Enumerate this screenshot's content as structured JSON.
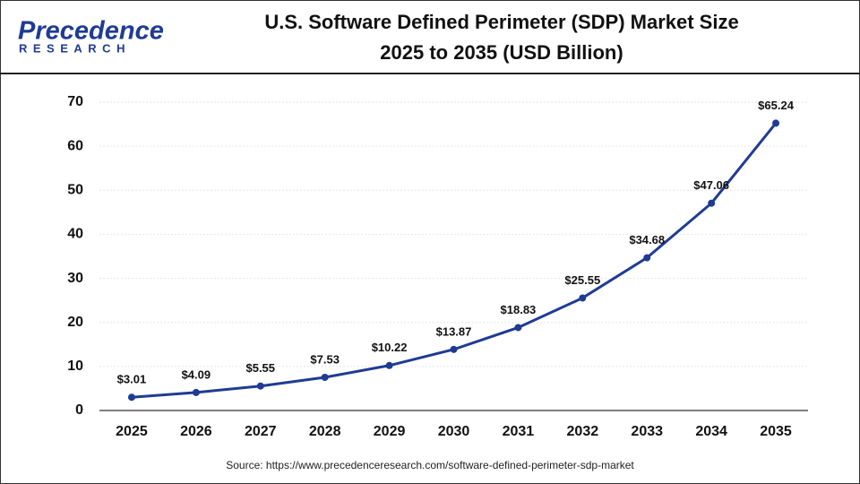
{
  "brand": {
    "name": "Precedence",
    "tagline": "RESEARCH"
  },
  "chart_data": {
    "type": "line",
    "title": [
      "U.S. Software Defined Perimeter (SDP) Market Size",
      "2025 to 2035 (USD Billion)"
    ],
    "categories": [
      "2025",
      "2026",
      "2027",
      "2028",
      "2029",
      "2030",
      "2031",
      "2032",
      "2033",
      "2034",
      "2035"
    ],
    "values": [
      3.01,
      4.09,
      5.55,
      7.53,
      10.22,
      13.87,
      18.83,
      25.55,
      34.68,
      47.06,
      65.24
    ],
    "value_labels": [
      "$3.01",
      "$4.09",
      "$5.55",
      "$7.53",
      "$10.22",
      "$13.87",
      "$18.83",
      "$25.55",
      "$34.68",
      "$47.06",
      "$65.24"
    ],
    "color": "#1f3b94",
    "ylim": [
      0,
      70
    ],
    "yticks": [
      0,
      10,
      20,
      30,
      40,
      50,
      60,
      70
    ],
    "grid": true,
    "source": "Source: https://www.precedenceresearch.com/software-defined-perimeter-sdp-market"
  }
}
